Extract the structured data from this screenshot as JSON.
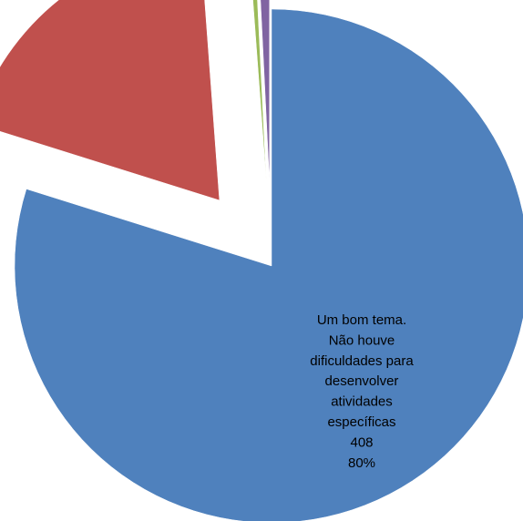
{
  "chart_data": {
    "type": "pie",
    "title": "",
    "series": [
      {
        "values": [
          408,
          97,
          2,
          4
        ],
        "colors": [
          "#4f81bd",
          "#c0504d",
          "#9bbb59",
          "#8064a2"
        ]
      }
    ],
    "categories": [
      "Um bom tema. Não houve dificuldades para desenvolver atividades específicas",
      "",
      "",
      ""
    ],
    "exploded": true,
    "data_labels": [
      {
        "lines": [
          "Um bom tema.",
          "Não houve",
          "dificuldades para",
          "desenvolver",
          "atividades",
          "específicas",
          "408",
          "80%"
        ]
      }
    ],
    "legend": "none",
    "grid": false
  }
}
